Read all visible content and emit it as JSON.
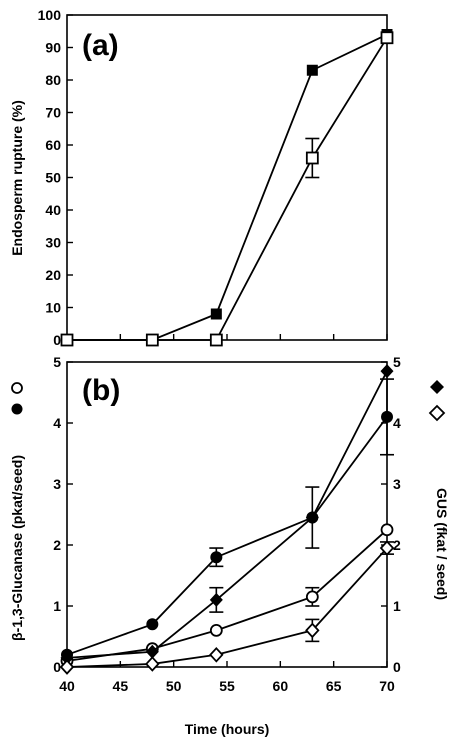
{
  "chart_data": [
    {
      "type": "line",
      "panel_label": "(a)",
      "ylabel": "Endosperm rupture (%)",
      "xlabel": "",
      "xlim": [
        40,
        70
      ],
      "ylim": [
        0,
        100
      ],
      "yticks": [
        "0",
        "10",
        "20",
        "30",
        "40",
        "50",
        "60",
        "70",
        "80",
        "90",
        "100"
      ],
      "grid": false,
      "series": [
        {
          "marker": "filled-square",
          "color": "#000000",
          "points": [
            {
              "x": 40,
              "y": 0
            },
            {
              "x": 48,
              "y": 0
            },
            {
              "x": 54,
              "y": 8
            },
            {
              "x": 63,
              "y": 83
            },
            {
              "x": 70,
              "y": 94
            }
          ]
        },
        {
          "marker": "open-square",
          "color": "#000000",
          "points": [
            {
              "x": 40,
              "y": 0
            },
            {
              "x": 48,
              "y": 0
            },
            {
              "x": 54,
              "y": 0
            },
            {
              "x": 63,
              "y": 56,
              "err": 6
            },
            {
              "x": 70,
              "y": 93
            }
          ]
        }
      ]
    },
    {
      "type": "line",
      "panel_label": "(b)",
      "xlabel": "Time (hours)",
      "ylabel": "β-1,3-Glucanase  (pkat/seed)",
      "y2label": "GUS (fkat / seed)",
      "xlim": [
        40,
        70
      ],
      "xticks": [
        "40",
        "45",
        "50",
        "55",
        "60",
        "65",
        "70"
      ],
      "ylim": [
        0,
        5
      ],
      "yticks": [
        "0",
        "1",
        "2",
        "3",
        "4",
        "5"
      ],
      "y2lim": [
        0,
        5
      ],
      "y2ticks": [
        "0",
        "1",
        "2",
        "3",
        "4",
        "5"
      ],
      "grid": false,
      "series": [
        {
          "marker": "filled-circle",
          "axis": "left",
          "points": [
            {
              "x": 40,
              "y": 0.2
            },
            {
              "x": 48,
              "y": 0.7
            },
            {
              "x": 54,
              "y": 1.8,
              "err": 0.15
            },
            {
              "x": 63,
              "y": 2.45
            },
            {
              "x": 70,
              "y": 4.1,
              "err": 0.62
            }
          ]
        },
        {
          "marker": "open-circle",
          "axis": "left",
          "points": [
            {
              "x": 40,
              "y": 0.1
            },
            {
              "x": 48,
              "y": 0.3
            },
            {
              "x": 54,
              "y": 0.6
            },
            {
              "x": 63,
              "y": 1.15,
              "err": 0.15
            },
            {
              "x": 70,
              "y": 2.25
            }
          ]
        },
        {
          "marker": "filled-diamond",
          "axis": "right",
          "points": [
            {
              "x": 40,
              "y": 0.15
            },
            {
              "x": 48,
              "y": 0.25
            },
            {
              "x": 54,
              "y": 1.1,
              "err": 0.2
            },
            {
              "x": 63,
              "y": 2.45,
              "err": 0.5
            },
            {
              "x": 70,
              "y": 4.85
            }
          ]
        },
        {
          "marker": "open-diamond",
          "axis": "right",
          "points": [
            {
              "x": 40,
              "y": 0.0
            },
            {
              "x": 48,
              "y": 0.05
            },
            {
              "x": 54,
              "y": 0.2
            },
            {
              "x": 63,
              "y": 0.6,
              "err": 0.18
            },
            {
              "x": 70,
              "y": 1.95,
              "err": 0.1
            }
          ]
        }
      ]
    }
  ]
}
